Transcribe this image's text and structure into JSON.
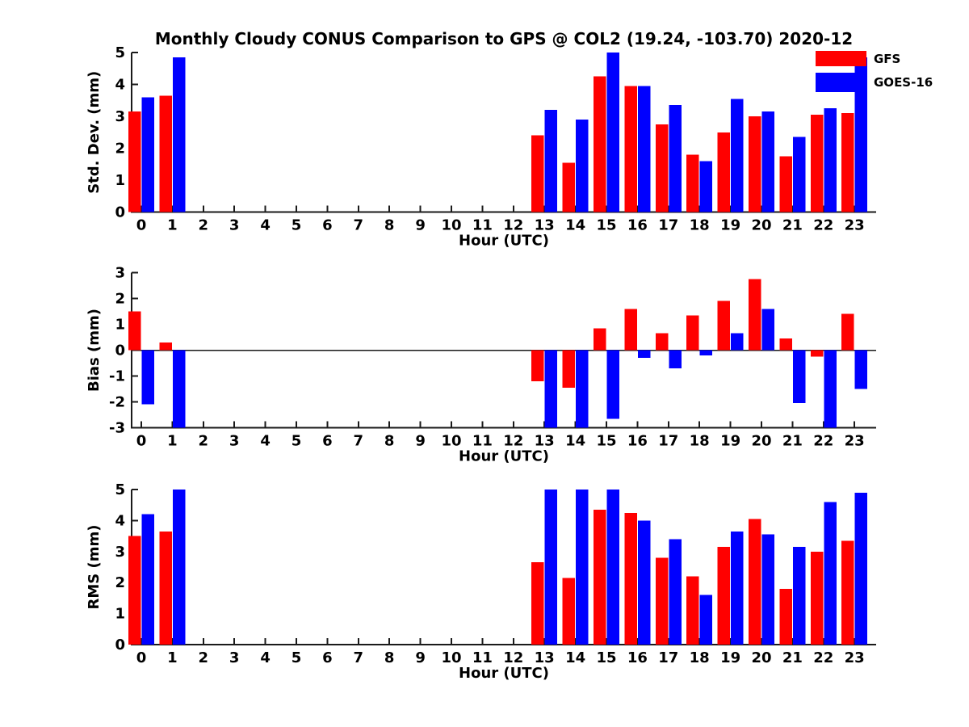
{
  "title": "Monthly Cloudy CONUS Comparison to GPS @ COL2 (19.24, -103.70) 2020-12",
  "legend": {
    "items": [
      {
        "label": "GFS",
        "color": "#ff0000"
      },
      {
        "label": "GOES-16",
        "color": "#0000ff"
      }
    ]
  },
  "colors": {
    "gfs": "#ff0000",
    "goes16": "#0000ff",
    "axis": "#1a1a1a",
    "text": "#000000"
  },
  "chart_data": [
    {
      "id": "stddev",
      "type": "bar",
      "title": "",
      "xlabel": "Hour (UTC)",
      "ylabel": "Std. Dev. (mm)",
      "ylim": [
        0,
        5
      ],
      "yticks": [
        0,
        1,
        2,
        3,
        4,
        5
      ],
      "grid": false,
      "categories": [
        0,
        1,
        2,
        3,
        4,
        5,
        6,
        7,
        8,
        9,
        10,
        11,
        12,
        13,
        14,
        15,
        16,
        17,
        18,
        19,
        20,
        21,
        22,
        23
      ],
      "series": [
        {
          "name": "GFS",
          "color": "#ff0000",
          "values": [
            3.15,
            3.65,
            0,
            0,
            0,
            0,
            0,
            0,
            0,
            0,
            0,
            0,
            0,
            2.4,
            1.55,
            4.25,
            3.95,
            2.75,
            1.8,
            2.5,
            3.0,
            1.75,
            3.05,
            3.1
          ]
        },
        {
          "name": "GOES-16",
          "color": "#0000ff",
          "values": [
            3.6,
            4.85,
            0,
            0,
            0,
            0,
            0,
            0,
            0,
            0,
            0,
            0,
            0,
            3.2,
            2.9,
            5.0,
            3.95,
            3.35,
            1.6,
            3.55,
            3.15,
            2.35,
            3.25,
            4.85
          ]
        }
      ]
    },
    {
      "id": "bias",
      "type": "bar",
      "title": "",
      "xlabel": "Hour (UTC)",
      "ylabel": "Bias (mm)",
      "ylim": [
        -3,
        3
      ],
      "yticks": [
        3,
        2,
        1,
        0,
        -1,
        -2,
        -3
      ],
      "grid": false,
      "zero_line": true,
      "categories": [
        0,
        1,
        2,
        3,
        4,
        5,
        6,
        7,
        8,
        9,
        10,
        11,
        12,
        13,
        14,
        15,
        16,
        17,
        18,
        19,
        20,
        21,
        22,
        23
      ],
      "series": [
        {
          "name": "GFS",
          "color": "#ff0000",
          "values": [
            1.5,
            0.3,
            0,
            0,
            0,
            0,
            0,
            0,
            0,
            0,
            0,
            0,
            0,
            -1.2,
            -1.45,
            0.85,
            1.6,
            0.65,
            1.35,
            1.9,
            2.75,
            0.45,
            -0.25,
            1.4
          ]
        },
        {
          "name": "GOES-16",
          "color": "#0000ff",
          "values": [
            -2.1,
            -3.0,
            0,
            0,
            0,
            0,
            0,
            0,
            0,
            0,
            0,
            0,
            0,
            -3.0,
            -3.0,
            -2.65,
            -0.3,
            -0.7,
            -0.2,
            0.65,
            1.6,
            -2.05,
            -3.0,
            -1.5
          ]
        }
      ]
    },
    {
      "id": "rms",
      "type": "bar",
      "title": "",
      "xlabel": "Hour (UTC)",
      "ylabel": "RMS (mm)",
      "ylim": [
        0,
        5
      ],
      "yticks": [
        0,
        1,
        2,
        3,
        4,
        5
      ],
      "grid": false,
      "categories": [
        0,
        1,
        2,
        3,
        4,
        5,
        6,
        7,
        8,
        9,
        10,
        11,
        12,
        13,
        14,
        15,
        16,
        17,
        18,
        19,
        20,
        21,
        22,
        23
      ],
      "series": [
        {
          "name": "GFS",
          "color": "#ff0000",
          "values": [
            3.5,
            3.65,
            0,
            0,
            0,
            0,
            0,
            0,
            0,
            0,
            0,
            0,
            0,
            2.65,
            2.15,
            4.35,
            4.25,
            2.8,
            2.2,
            3.15,
            4.05,
            1.8,
            3.0,
            3.35
          ]
        },
        {
          "name": "GOES-16",
          "color": "#0000ff",
          "values": [
            4.2,
            5.0,
            0,
            0,
            0,
            0,
            0,
            0,
            0,
            0,
            0,
            0,
            0,
            5.0,
            5.0,
            5.0,
            4.0,
            3.4,
            1.6,
            3.65,
            3.55,
            3.15,
            4.6,
            4.9
          ]
        }
      ]
    }
  ]
}
